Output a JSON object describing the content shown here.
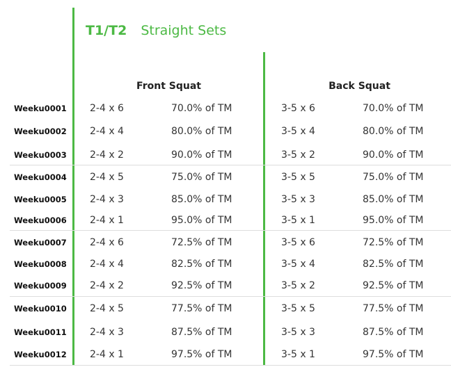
{
  "header": {
    "tier": "T1/T2",
    "scheme": "Straight Sets"
  },
  "exercises": {
    "front": "Front Squat",
    "back": "Back Squat"
  },
  "colors": {
    "accent": "#4cb944",
    "text": "#333333",
    "separator": "#dddddd"
  },
  "rows": [
    {
      "week": "Weeku0001",
      "fs_sets": "2-4 x 6",
      "fs_pct": "70.0% of TM",
      "bs_sets": "3-5 x 6",
      "bs_pct": "70.0% of TM"
    },
    {
      "week": "Weeku0002",
      "fs_sets": "2-4 x 4",
      "fs_pct": "80.0% of TM",
      "bs_sets": "3-5 x 4",
      "bs_pct": "80.0% of TM"
    },
    {
      "week": "Weeku0003",
      "fs_sets": "2-4 x 2",
      "fs_pct": "90.0% of TM",
      "bs_sets": "3-5 x 2",
      "bs_pct": "90.0% of TM"
    },
    {
      "week": "Weeku0004",
      "fs_sets": "2-4 x 5",
      "fs_pct": "75.0% of TM",
      "bs_sets": "3-5 x 5",
      "bs_pct": "75.0% of TM"
    },
    {
      "week": "Weeku0005",
      "fs_sets": "2-4 x 3",
      "fs_pct": "85.0% of TM",
      "bs_sets": "3-5 x 3",
      "bs_pct": "85.0% of TM"
    },
    {
      "week": "Weeku0006",
      "fs_sets": "2-4 x 1",
      "fs_pct": "95.0% of TM",
      "bs_sets": "3-5 x 1",
      "bs_pct": "95.0% of TM"
    },
    {
      "week": "Weeku0007",
      "fs_sets": "2-4 x 6",
      "fs_pct": "72.5% of TM",
      "bs_sets": "3-5 x 6",
      "bs_pct": "72.5% of TM"
    },
    {
      "week": "Weeku0008",
      "fs_sets": "2-4 x 4",
      "fs_pct": "82.5% of TM",
      "bs_sets": "3-5 x 4",
      "bs_pct": "82.5% of TM"
    },
    {
      "week": "Weeku0009",
      "fs_sets": "2-4 x 2",
      "fs_pct": "92.5% of TM",
      "bs_sets": "3-5 x 2",
      "bs_pct": "92.5% of TM"
    },
    {
      "week": "Weeku0010",
      "fs_sets": "2-4 x 5",
      "fs_pct": "77.5% of TM",
      "bs_sets": "3-5 x 5",
      "bs_pct": "77.5% of TM"
    },
    {
      "week": "Weeku0011",
      "fs_sets": "2-4 x 3",
      "fs_pct": "87.5% of TM",
      "bs_sets": "3-5 x 3",
      "bs_pct": "87.5% of TM"
    },
    {
      "week": "Weeku0012",
      "fs_sets": "2-4 x 1",
      "fs_pct": "97.5% of TM",
      "bs_sets": "3-5 x 1",
      "bs_pct": "97.5% of TM"
    }
  ]
}
